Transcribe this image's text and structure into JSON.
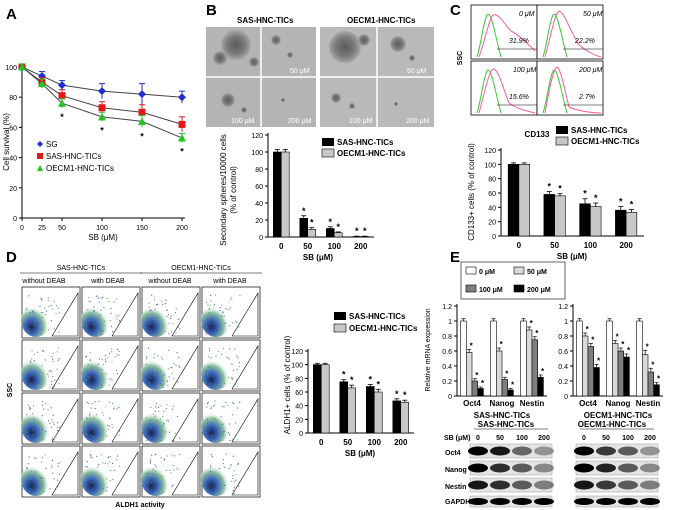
{
  "panel_labels": [
    "A",
    "B",
    "C",
    "D",
    "E"
  ],
  "chart_data": [
    {
      "panel": "A",
      "type": "line",
      "title": "",
      "xlabel": "SB (μM)",
      "ylabel": "Cell survival (%)",
      "x": [
        0,
        25,
        50,
        100,
        150,
        200
      ],
      "xlim": [
        0,
        200
      ],
      "ylim": [
        0,
        100
      ],
      "yticks": [
        "0",
        "20",
        "40",
        "60",
        "80",
        "100"
      ],
      "series": [
        {
          "name": "SG",
          "color": "#1f2fd6",
          "marker": "diamond",
          "values": [
            100,
            94,
            88,
            84,
            82,
            80
          ],
          "err": [
            2,
            3,
            3,
            5,
            7,
            4
          ]
        },
        {
          "name": "SAS-HNC-TICs",
          "color": "#e01818",
          "marker": "square",
          "values": [
            100,
            90,
            81,
            73,
            70,
            62
          ],
          "err": [
            2,
            3,
            4,
            4,
            5,
            5
          ]
        },
        {
          "name": "OECM1-HNC-TICs",
          "color": "#22c322",
          "marker": "triangle",
          "values": [
            100,
            89,
            76,
            67,
            64,
            53
          ],
          "err": [
            2,
            3,
            3,
            3,
            4,
            3
          ]
        }
      ],
      "annotations": [
        "*",
        "*",
        "*",
        "*"
      ]
    },
    {
      "panel": "B",
      "type": "bar",
      "title": "",
      "xlabel": "SB (μM)",
      "ylabel": "Secondary spheres/10000 cells (% of control)",
      "categories": [
        "0",
        "50",
        "100",
        "200"
      ],
      "ylim": [
        0,
        120
      ],
      "yticks": [
        "0",
        "20",
        "40",
        "60",
        "80",
        "100",
        "120"
      ],
      "series": [
        {
          "name": "SAS-HNC-TICs",
          "color": "#000000",
          "values": [
            100,
            22,
            10,
            0.5
          ],
          "err": [
            3,
            3,
            2,
            0.5
          ]
        },
        {
          "name": "OECM1-HNC-TICs",
          "color": "#c8c8c8",
          "values": [
            100,
            9,
            5,
            0.5
          ],
          "err": [
            3,
            2,
            1,
            0.5
          ]
        }
      ],
      "annotations": [
        "*",
        "*",
        "*",
        "*",
        "*",
        "*"
      ]
    },
    {
      "panel": "C",
      "type": "bar",
      "title": "",
      "xlabel": "SB (μM)",
      "ylabel": "CD133+ cells (% of control)",
      "categories": [
        "0",
        "50",
        "100",
        "200"
      ],
      "ylim": [
        0,
        120
      ],
      "yticks": [
        "0",
        "20",
        "40",
        "60",
        "80",
        "100",
        "120"
      ],
      "series": [
        {
          "name": "SAS-HNC-TICs",
          "color": "#000000",
          "values": [
            100,
            58,
            45,
            36
          ],
          "err": [
            2,
            4,
            7,
            5
          ]
        },
        {
          "name": "OECM1-HNC-TICs",
          "color": "#c8c8c8",
          "values": [
            100,
            56,
            41,
            33
          ],
          "err": [
            2,
            3,
            5,
            4
          ]
        }
      ],
      "annotations": [
        "*",
        "*",
        "*",
        "*",
        "*",
        "*"
      ]
    },
    {
      "panel": "D",
      "type": "bar",
      "title": "",
      "xlabel": "SB (μM)",
      "ylabel": "ALDH1+ cells (% of control)",
      "categories": [
        "0",
        "50",
        "100",
        "200"
      ],
      "ylim": [
        0,
        120
      ],
      "yticks": [
        "0",
        "20",
        "40",
        "60",
        "80",
        "100",
        "120"
      ],
      "series": [
        {
          "name": "SAS-HNC-TICs",
          "color": "#000000",
          "values": [
            100,
            75,
            68,
            47
          ],
          "err": [
            2,
            3,
            3,
            3
          ]
        },
        {
          "name": "OECM1-HNC-TICs",
          "color": "#c8c8c8",
          "values": [
            100,
            66,
            60,
            45
          ],
          "err": [
            2,
            4,
            4,
            3
          ]
        }
      ],
      "annotations": [
        "*",
        "*",
        "*",
        "*",
        "*",
        "*"
      ]
    },
    {
      "panel": "E",
      "type": "bar",
      "title": "",
      "group": "SAS-HNC-TICs",
      "xlabel": "SAS-HNC-TICs",
      "ylabel": "Relative mRNA expression",
      "categories": [
        "Oct4",
        "Nanog",
        "Nestin"
      ],
      "ylim": [
        0,
        1.2
      ],
      "yticks": [
        "0",
        "0.2",
        "0.4",
        "0.6",
        "0.8",
        "1",
        "1.2"
      ],
      "series": [
        {
          "name": "0 μM",
          "color": "#ffffff",
          "values": [
            1.0,
            1.0,
            1.0
          ],
          "err": [
            0.03,
            0.03,
            0.03
          ]
        },
        {
          "name": "50 μM",
          "color": "#d9d9d9",
          "values": [
            0.58,
            0.6,
            0.88
          ],
          "err": [
            0.04,
            0.04,
            0.04
          ]
        },
        {
          "name": "100 μM",
          "color": "#7f7f7f",
          "values": [
            0.2,
            0.22,
            0.75
          ],
          "err": [
            0.03,
            0.03,
            0.04
          ]
        },
        {
          "name": "200 μM",
          "color": "#000000",
          "values": [
            0.1,
            0.08,
            0.25
          ],
          "err": [
            0.02,
            0.02,
            0.03
          ]
        }
      ],
      "annotations": [
        "*",
        "*",
        "*",
        "*",
        "*",
        "*",
        "*",
        "*",
        "*"
      ]
    },
    {
      "panel": "E",
      "type": "bar",
      "title": "",
      "group": "OECM1-HNC-TICs",
      "xlabel": "OECM1-HNC-TICs",
      "ylabel": "",
      "categories": [
        "Oct4",
        "Nanog",
        "Nestin"
      ],
      "ylim": [
        0,
        1.2
      ],
      "yticks": [
        "0",
        "0.2",
        "0.4",
        "0.6",
        "0.8",
        "1",
        "1.2"
      ],
      "series": [
        {
          "name": "0 μM",
          "color": "#ffffff",
          "values": [
            1.0,
            1.0,
            1.0
          ],
          "err": [
            0.03,
            0.03,
            0.03
          ]
        },
        {
          "name": "50 μM",
          "color": "#d9d9d9",
          "values": [
            0.8,
            0.7,
            0.55
          ],
          "err": [
            0.04,
            0.04,
            0.06
          ]
        },
        {
          "name": "100 μM",
          "color": "#7f7f7f",
          "values": [
            0.66,
            0.6,
            0.32
          ],
          "err": [
            0.04,
            0.04,
            0.05
          ]
        },
        {
          "name": "200 μM",
          "color": "#000000",
          "values": [
            0.38,
            0.52,
            0.15
          ],
          "err": [
            0.04,
            0.04,
            0.03
          ]
        }
      ],
      "annotations": [
        "*",
        "*",
        "*",
        "*",
        "*",
        "*",
        "*",
        "*",
        "*"
      ]
    }
  ],
  "panelB": {
    "row_labels": [
      "SAS-HNC-TICs",
      "OECM1-HNC-TICs"
    ],
    "dose_labels": [
      "50 μM",
      "50 μM",
      "100 μM",
      "200 μM",
      "100 μM",
      "200 μM"
    ]
  },
  "panelC": {
    "doses": [
      "0 μM",
      "50 μM",
      "100 μM",
      "200 μM"
    ],
    "percents": [
      "31.9%",
      "22.2%",
      "15.6%",
      "2.7%"
    ],
    "yaxis": "SSC",
    "xaxis": "CD133"
  },
  "panelD": {
    "groups": [
      "SAS-HNC-TICs",
      "OECM1-HNC-TICs"
    ],
    "conditions": [
      "without DEAB",
      "with DEAB",
      "without DEAB",
      "with DEAB"
    ],
    "yaxis": "SSC",
    "xaxis": "ALDH1 activity"
  },
  "panelE_blot": {
    "dose_label": "SB (μM)",
    "groups": [
      "SAS-HNC-TICs",
      "OECM1-HNC-TICs"
    ],
    "doses": [
      "0",
      "50",
      "100",
      "200"
    ],
    "proteins": [
      "Oct4",
      "Nanog",
      "Nestin",
      "GAPDH"
    ]
  }
}
